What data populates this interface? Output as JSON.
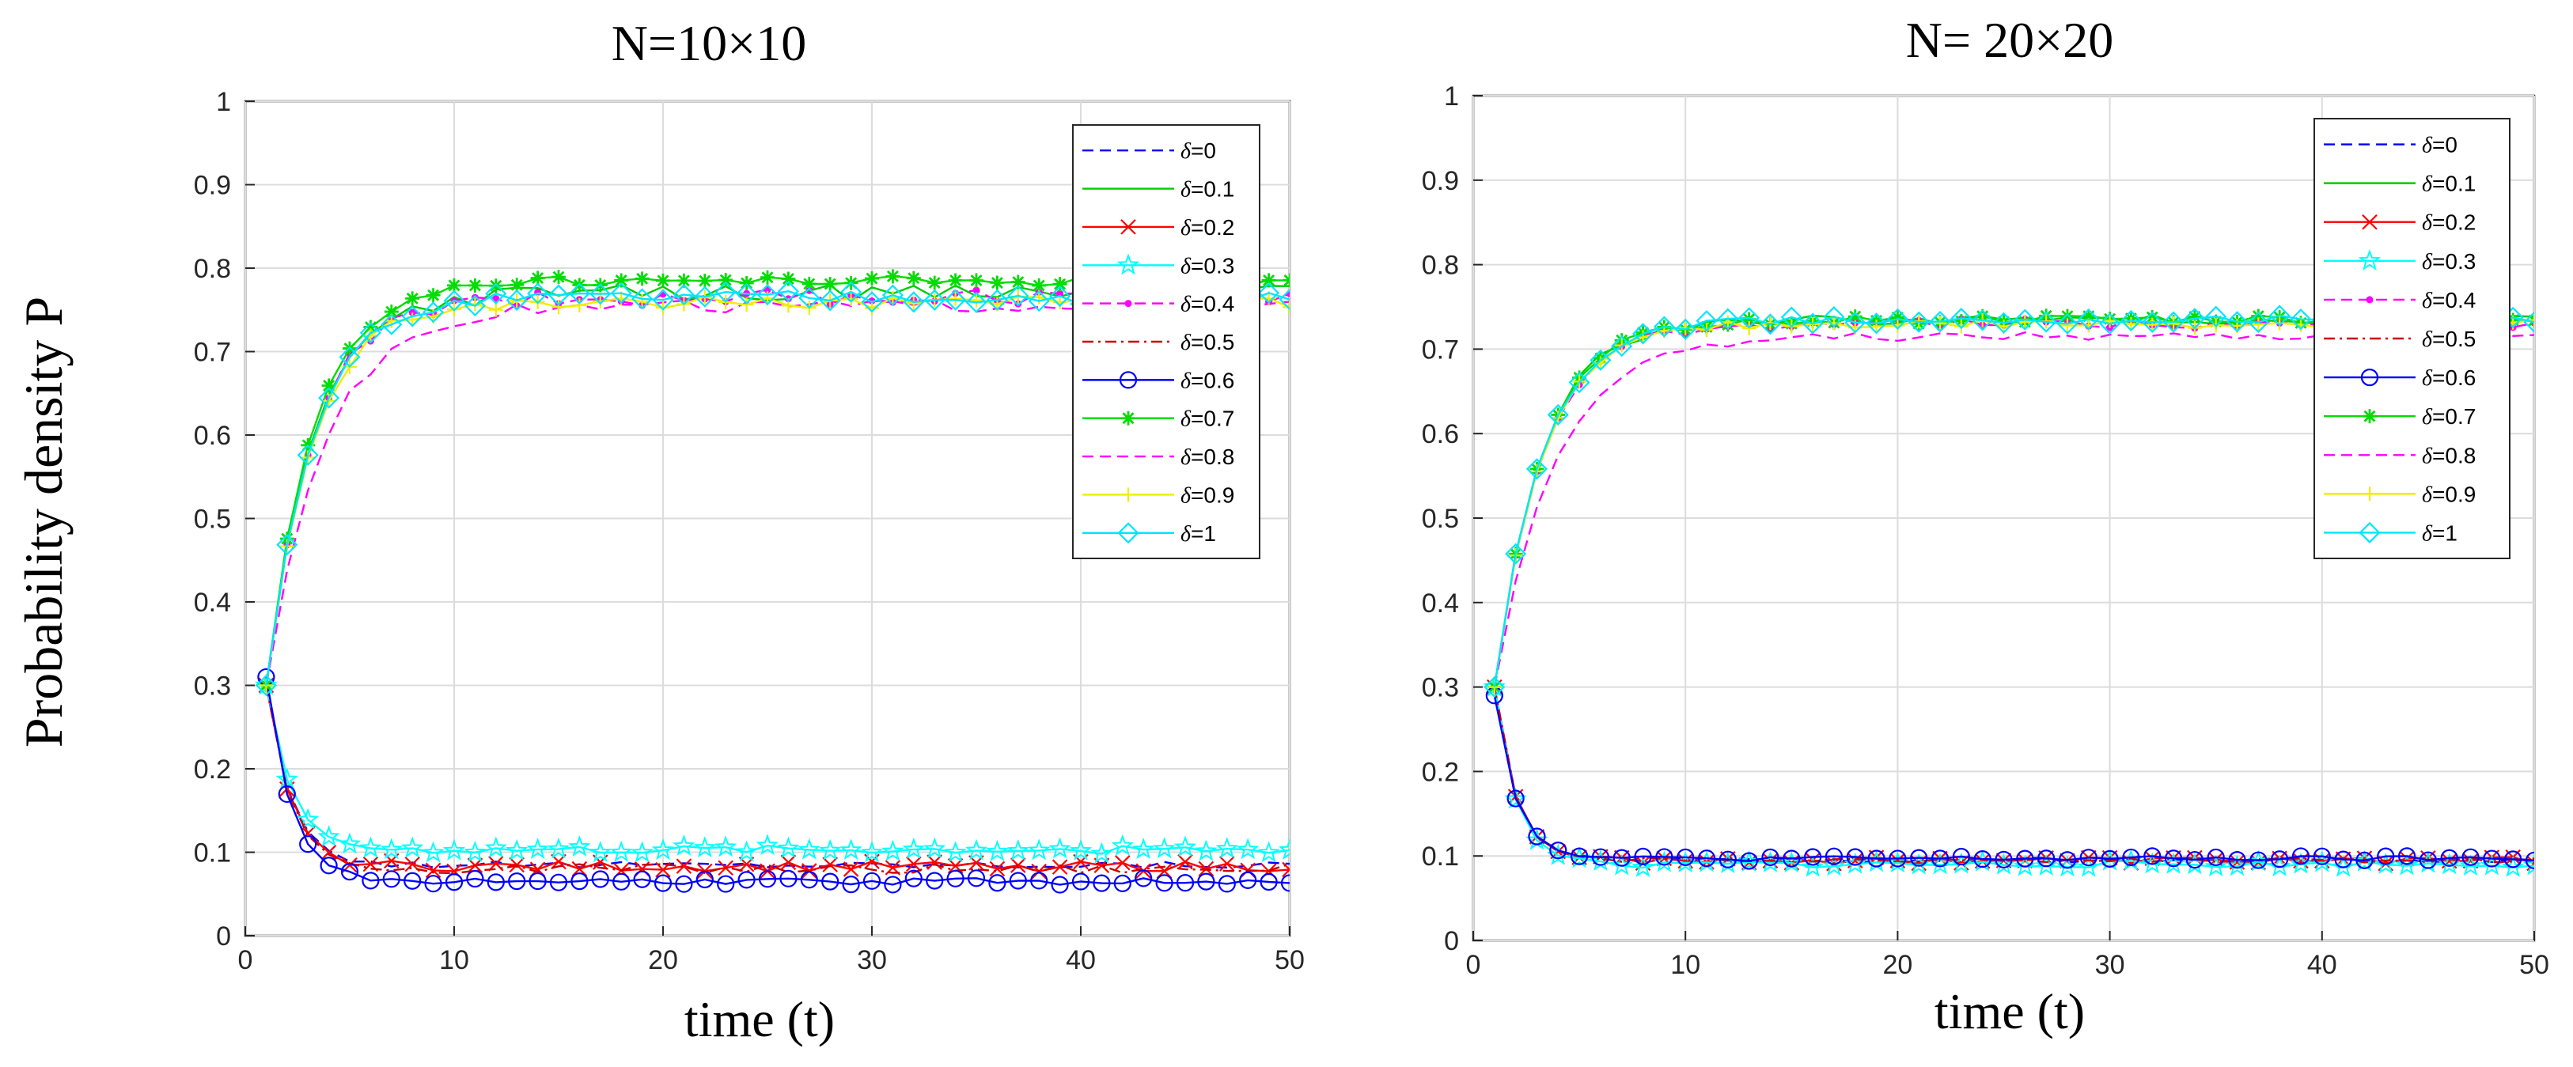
{
  "figure": {
    "ylabel": "Probability density P",
    "legend_prefix": "δ="
  },
  "chart_data": [
    {
      "type": "line",
      "title": "N=10×10",
      "xlabel": "time  (t)",
      "ylabel": "Probability density P",
      "xlim": [
        0,
        50
      ],
      "ylim": [
        0,
        1
      ],
      "xticks": [
        0,
        10,
        20,
        30,
        40,
        50
      ],
      "yticks": [
        0,
        0.1,
        0.2,
        0.3,
        0.4,
        0.5,
        0.6,
        0.7,
        0.8,
        0.9,
        1
      ],
      "grid": true,
      "legend_position": "top-right",
      "series": [
        {
          "name": "δ=0",
          "delta": "0",
          "color": "#0000ff",
          "dash": "dashed",
          "marker": "none",
          "start": 0.3,
          "curve": "low",
          "steady": 0.085,
          "amp": 0.004
        },
        {
          "name": "δ=0.1",
          "delta": "0.1",
          "color": "#00cc00",
          "dash": "solid",
          "marker": "none",
          "start": 0.3,
          "curve": "high",
          "steady": 0.77,
          "amp": 0.01
        },
        {
          "name": "δ=0.2",
          "delta": "0.2",
          "color": "#ff0000",
          "dash": "solid",
          "marker": "x",
          "start": 0.3,
          "curve": "low",
          "steady": 0.083,
          "amp": 0.006
        },
        {
          "name": "δ=0.3",
          "delta": "0.3",
          "color": "#00ffff",
          "dash": "solid",
          "marker": "star",
          "start": 0.3,
          "curve": "low",
          "steady": 0.103,
          "amp": 0.005
        },
        {
          "name": "δ=0.4",
          "delta": "0.4",
          "color": "#ff00ff",
          "dash": "dashed",
          "marker": "dot",
          "start": 0.3,
          "curve": "high",
          "steady": 0.765,
          "amp": 0.01
        },
        {
          "name": "δ=0.5",
          "delta": "0.5",
          "color": "#cc0000",
          "dash": "dashdot",
          "marker": "none",
          "start": 0.3,
          "curve": "low",
          "steady": 0.08,
          "amp": 0.006
        },
        {
          "name": "δ=0.6",
          "delta": "0.6",
          "color": "#0000ff",
          "dash": "solid",
          "marker": "circle",
          "start": 0.31,
          "curve": "low",
          "steady": 0.065,
          "amp": 0.004
        },
        {
          "name": "δ=0.7",
          "delta": "0.7",
          "color": "#00dd00",
          "dash": "solid",
          "marker": "asterisk",
          "start": 0.3,
          "curve": "high",
          "steady": 0.785,
          "amp": 0.006
        },
        {
          "name": "δ=0.8",
          "delta": "0.8",
          "color": "#ff00ff",
          "dash": "dashed",
          "marker": "none",
          "start": 0.3,
          "curve": "highslow",
          "steady": 0.755,
          "amp": 0.008
        },
        {
          "name": "δ=0.9",
          "delta": "0.9",
          "color": "#eeee00",
          "dash": "solid",
          "marker": "plus",
          "start": 0.3,
          "curve": "high",
          "steady": 0.76,
          "amp": 0.008
        },
        {
          "name": "δ=1",
          "delta": "1",
          "color": "#00e5ff",
          "dash": "solid",
          "marker": "diamond",
          "start": 0.3,
          "curve": "high",
          "steady": 0.765,
          "amp": 0.008
        }
      ]
    },
    {
      "type": "line",
      "title": "N= 20×20",
      "xlabel": "time  (t)",
      "ylabel": "Probability density P",
      "xlim": [
        0,
        50
      ],
      "ylim": [
        0,
        1
      ],
      "xticks": [
        0,
        10,
        20,
        30,
        40,
        50
      ],
      "yticks": [
        0,
        0.1,
        0.2,
        0.3,
        0.4,
        0.5,
        0.6,
        0.7,
        0.8,
        0.9,
        1
      ],
      "grid": true,
      "legend_position": "top-right",
      "series": [
        {
          "name": "δ=0",
          "delta": "0",
          "color": "#0000ff",
          "dash": "dashed",
          "marker": "none",
          "start": 0.3,
          "curve": "low",
          "steady": 0.095,
          "amp": 0.003
        },
        {
          "name": "δ=0.1",
          "delta": "0.1",
          "color": "#00cc00",
          "dash": "solid",
          "marker": "none",
          "start": 0.3,
          "curve": "high",
          "steady": 0.735,
          "amp": 0.006
        },
        {
          "name": "δ=0.2",
          "delta": "0.2",
          "color": "#ff0000",
          "dash": "solid",
          "marker": "x",
          "start": 0.3,
          "curve": "low",
          "steady": 0.095,
          "amp": 0.004
        },
        {
          "name": "δ=0.3",
          "delta": "0.3",
          "color": "#00ffff",
          "dash": "solid",
          "marker": "star",
          "start": 0.3,
          "curve": "low",
          "steady": 0.09,
          "amp": 0.004
        },
        {
          "name": "δ=0.4",
          "delta": "0.4",
          "color": "#ff00ff",
          "dash": "dashed",
          "marker": "dot",
          "start": 0.3,
          "curve": "high",
          "steady": 0.73,
          "amp": 0.006
        },
        {
          "name": "δ=0.5",
          "delta": "0.5",
          "color": "#cc0000",
          "dash": "dashdot",
          "marker": "none",
          "start": 0.3,
          "curve": "low",
          "steady": 0.095,
          "amp": 0.003
        },
        {
          "name": "δ=0.6",
          "delta": "0.6",
          "color": "#0000ff",
          "dash": "solid",
          "marker": "circle",
          "start": 0.29,
          "curve": "low",
          "steady": 0.097,
          "amp": 0.003
        },
        {
          "name": "δ=0.7",
          "delta": "0.7",
          "color": "#00dd00",
          "dash": "solid",
          "marker": "asterisk",
          "start": 0.3,
          "curve": "high",
          "steady": 0.735,
          "amp": 0.005
        },
        {
          "name": "δ=0.8",
          "delta": "0.8",
          "color": "#ff00ff",
          "dash": "dashed",
          "marker": "none",
          "start": 0.3,
          "curve": "highslow",
          "steady": 0.715,
          "amp": 0.005
        },
        {
          "name": "δ=0.9",
          "delta": "0.9",
          "color": "#eeee00",
          "dash": "solid",
          "marker": "plus",
          "start": 0.3,
          "curve": "high",
          "steady": 0.73,
          "amp": 0.005
        },
        {
          "name": "δ=1",
          "delta": "1",
          "color": "#00e5ff",
          "dash": "solid",
          "marker": "diamond",
          "start": 0.3,
          "curve": "high",
          "steady": 0.735,
          "amp": 0.005
        }
      ]
    }
  ]
}
